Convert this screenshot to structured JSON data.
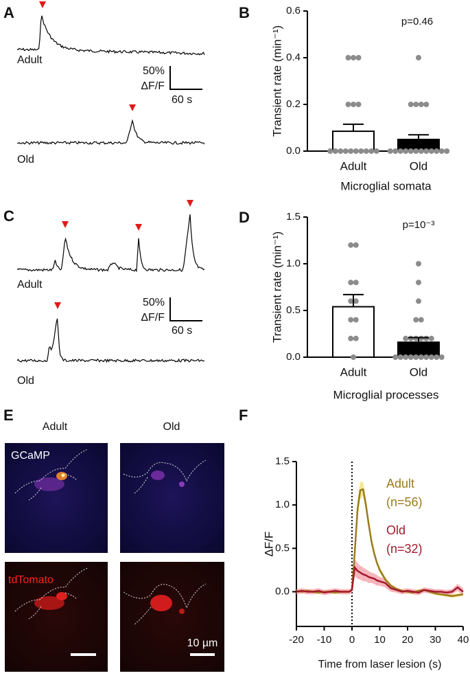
{
  "chart_data": [
    {
      "type": "bar",
      "panel_label": "B",
      "ylabel": "Transient rate (min⁻¹)",
      "xlabel": "Microglial somata",
      "annotation": "p=0.46",
      "categories": [
        "Adult",
        "Old"
      ],
      "values": [
        0.085,
        0.05
      ],
      "errors": [
        0.03,
        0.02
      ],
      "colors": [
        "#ffffff",
        "#000000"
      ],
      "point_color": "#8c8c8c",
      "points": [
        [
          0,
          0,
          0,
          0,
          0,
          0,
          0,
          0,
          0,
          0,
          0.2,
          0.2,
          0.2,
          0.4,
          0.4,
          0.4
        ],
        [
          0,
          0,
          0,
          0,
          0,
          0,
          0,
          0,
          0,
          0,
          0,
          0,
          0.2,
          0.2,
          0.2,
          0.2,
          0.4
        ]
      ],
      "ylim": [
        0,
        0.6
      ],
      "yticks": [
        {
          "value": 0,
          "label": "0.0"
        },
        0.2,
        0.4,
        0.6
      ]
    },
    {
      "type": "bar",
      "panel_label": "D",
      "ylabel": "Transient rate (min⁻¹)",
      "xlabel": "Microglial processes",
      "annotation": "p=10⁻³",
      "categories": [
        "Adult",
        "Old"
      ],
      "values": [
        0.54,
        0.16
      ],
      "errors": [
        0.13,
        0.05
      ],
      "colors": [
        "#ffffff",
        "#000000"
      ],
      "point_color": "#8c8c8c",
      "points": [
        [
          0,
          0.2,
          0.2,
          0.4,
          0.4,
          0.6,
          0.6,
          0.8,
          0.8,
          1.2,
          1.2
        ],
        [
          0,
          0,
          0,
          0,
          0,
          0,
          0,
          0,
          0,
          0,
          0.2,
          0.2,
          0.2,
          0.2,
          0.2,
          0.2,
          0.4,
          0.4,
          0.6,
          0.8,
          1.0
        ]
      ],
      "ylim": [
        0,
        1.5
      ],
      "yticks": [
        {
          "value": 0,
          "label": "0.0"
        },
        0.5,
        {
          "value": 1,
          "label": "1.0"
        },
        1.5
      ]
    },
    {
      "type": "line",
      "panel_label": "F",
      "xlabel": "Time from laser lesion (s)",
      "ylabel": "ΔF/F",
      "x": [
        -20,
        -18,
        -16,
        -14,
        -12,
        -10,
        -8,
        -6,
        -4,
        -2,
        -1,
        0,
        1,
        2,
        3,
        4,
        5,
        6,
        7,
        8,
        9,
        10,
        12,
        14,
        16,
        18,
        20,
        22,
        24,
        26,
        28,
        30,
        32,
        34,
        36,
        38,
        40
      ],
      "series": [
        {
          "name": "Adult",
          "n": "(n=56)",
          "color": "#9a7b1c",
          "band_color": "#f3e27a",
          "values": [
            0.01,
            0.0,
            0.01,
            0.0,
            -0.01,
            0.0,
            0.0,
            -0.01,
            0.0,
            0.0,
            0.0,
            0.02,
            0.45,
            0.95,
            1.17,
            1.18,
            1.0,
            0.78,
            0.58,
            0.44,
            0.33,
            0.25,
            0.14,
            0.07,
            0.03,
            0.01,
            0.0,
            -0.01,
            0.01,
            0.02,
            0.0,
            -0.02,
            -0.03,
            -0.04,
            -0.05,
            -0.04,
            -0.03
          ],
          "errors": [
            0.02,
            0.02,
            0.02,
            0.02,
            0.02,
            0.02,
            0.02,
            0.02,
            0.02,
            0.02,
            0.02,
            0.02,
            0.08,
            0.12,
            0.1,
            0.08,
            0.07,
            0.06,
            0.05,
            0.04,
            0.03,
            0.03,
            0.03,
            0.02,
            0.02,
            0.02,
            0.02,
            0.02,
            0.02,
            0.02,
            0.02,
            0.02,
            0.02,
            0.02,
            0.02,
            0.02,
            0.02
          ]
        },
        {
          "name": "Old",
          "n": "(n=32)",
          "color": "#a3192b",
          "band_color": "#f4a3ab",
          "values": [
            0.0,
            0.01,
            0.0,
            0.0,
            0.01,
            -0.01,
            0.0,
            0.01,
            0.0,
            0.0,
            0.0,
            0.02,
            0.28,
            0.24,
            0.22,
            0.2,
            0.19,
            0.17,
            0.16,
            0.15,
            0.13,
            0.12,
            0.1,
            0.04,
            0.02,
            0.0,
            0.01,
            0.0,
            -0.01,
            0.02,
            0.01,
            0.0,
            0.0,
            -0.01,
            0.0,
            0.05,
            0.0
          ],
          "errors": [
            0.03,
            0.03,
            0.03,
            0.03,
            0.03,
            0.03,
            0.03,
            0.03,
            0.03,
            0.03,
            0.03,
            0.03,
            0.1,
            0.09,
            0.08,
            0.08,
            0.07,
            0.07,
            0.06,
            0.06,
            0.06,
            0.05,
            0.05,
            0.04,
            0.03,
            0.03,
            0.03,
            0.03,
            0.03,
            0.03,
            0.03,
            0.03,
            0.03,
            0.03,
            0.03,
            0.04,
            0.04
          ]
        }
      ],
      "xlim": [
        -20,
        40
      ],
      "xticks": [
        -20,
        -10,
        0,
        10,
        20,
        30,
        40
      ],
      "ylim": [
        -0.4,
        1.5
      ],
      "yticks": [
        {
          "value": 0,
          "label": "0.0"
        },
        0.5,
        {
          "value": 1,
          "label": "1.0"
        },
        1.5
      ]
    }
  ],
  "panels": {
    "A": {
      "letter": "A",
      "trace_labels": [
        "Adult",
        "Old"
      ],
      "scale_y": "50%",
      "scale_y_unit": "ΔF/F",
      "scale_x": "60 s"
    },
    "C": {
      "letter": "C",
      "trace_labels": [
        "Adult",
        "Old"
      ],
      "scale_y": "50%",
      "scale_y_unit": "ΔF/F",
      "scale_x": "60 s"
    },
    "E": {
      "letter": "E",
      "columns": [
        "Adult",
        "Old"
      ],
      "channels": [
        "GCaMP",
        "tdTomato"
      ],
      "scale": "10 µm"
    }
  }
}
